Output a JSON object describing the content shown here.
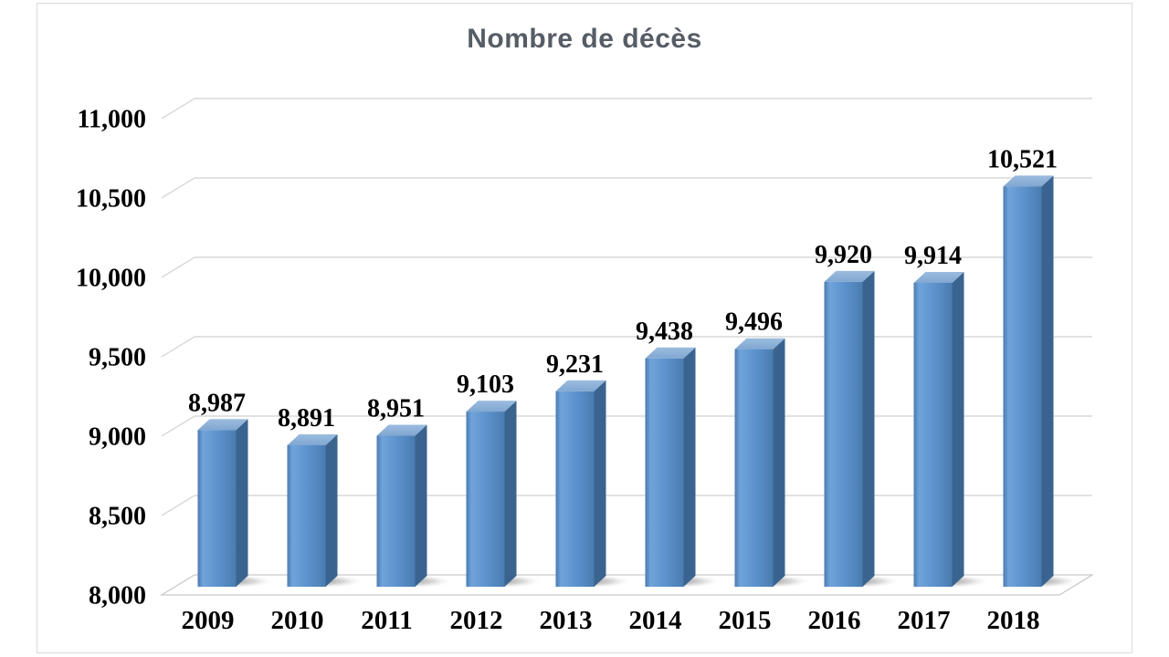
{
  "chart_data": {
    "type": "bar",
    "style": "3d-column",
    "title": "Nombre de décès",
    "xlabel": "",
    "ylabel": "",
    "categories": [
      "2009",
      "2010",
      "2011",
      "2012",
      "2013",
      "2014",
      "2015",
      "2016",
      "2017",
      "2018"
    ],
    "values": [
      8987,
      8891,
      8951,
      9103,
      9231,
      9438,
      9496,
      9920,
      9914,
      10521
    ],
    "value_labels": [
      "8,987",
      "8,891",
      "8,951",
      "9,103",
      "9,231",
      "9,438",
      "9,496",
      "9,920",
      "9,914",
      "10,521"
    ],
    "y_ticks": [
      "11,000",
      "10,500",
      "10,000",
      "9,500",
      "9,000",
      "8,500",
      "8,000"
    ],
    "y_tick_values": [
      11000,
      10500,
      10000,
      9500,
      9000,
      8500,
      8000
    ],
    "ylim": [
      8000,
      11000
    ],
    "y_step": 500,
    "grid": true,
    "legend": "none",
    "colors": {
      "bar_front": "#5b91cc",
      "bar_front_light": "#6fa3da",
      "bar_front_edge": "#4a7bae",
      "bar_front_right": "#4a7cb0",
      "bar_side": "#3a648f",
      "bar_top_light": "#9cbcdf",
      "bar_top_dark": "#80a7d1",
      "gridline": "#d9d9d9",
      "floor_border": "#c9c9c9",
      "title_text": "#565d66",
      "label_text": "#000000",
      "frame_border": "#dadada",
      "background": "#ffffff"
    }
  }
}
